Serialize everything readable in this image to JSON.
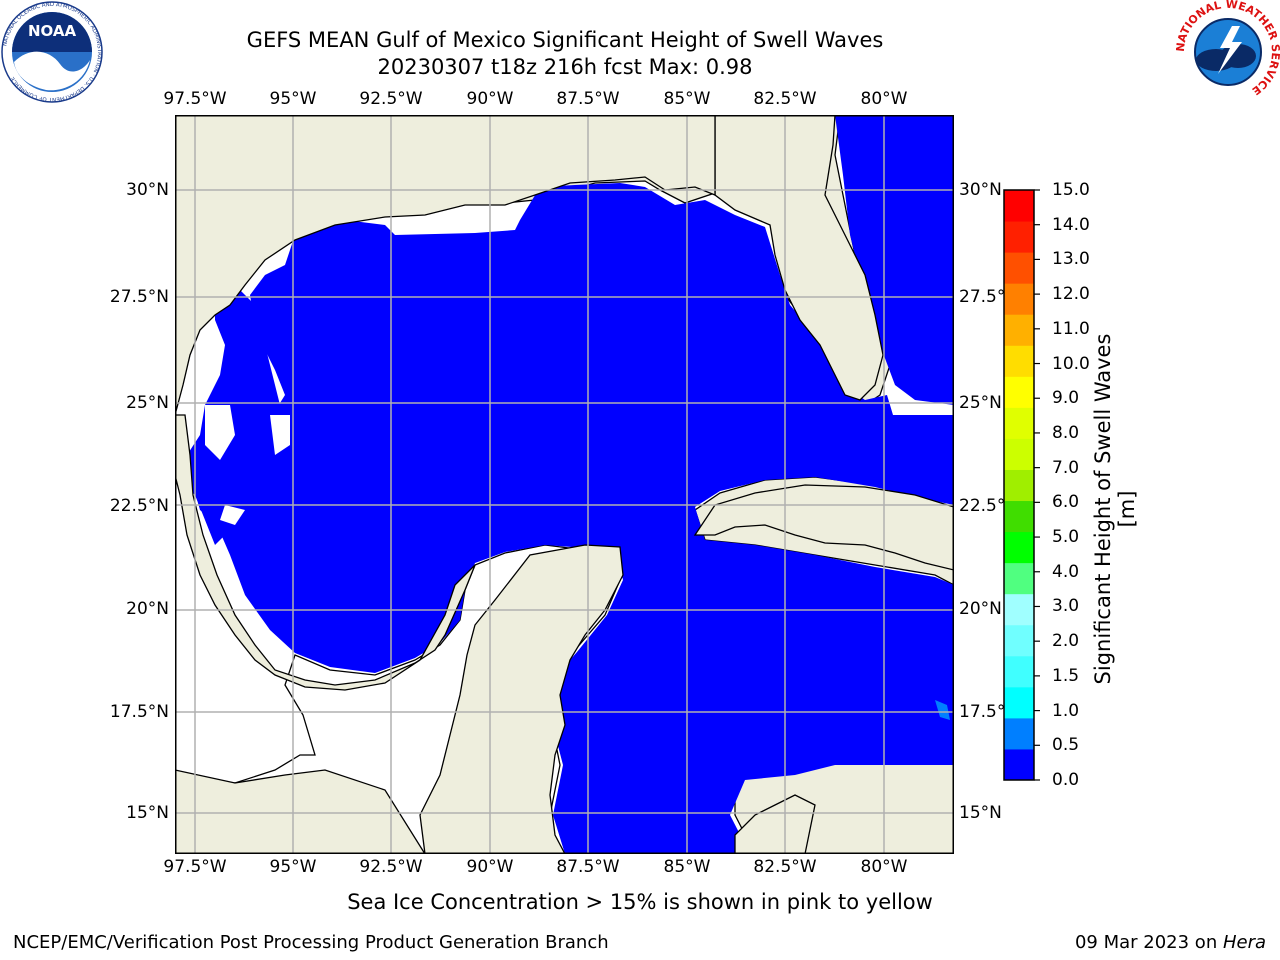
{
  "header": {
    "title": "GEFS MEAN Gulf of Mexico Significant Height of Swell Waves",
    "subtitle": "20230307 t18z 216h fcst   Max: 0.98"
  },
  "map": {
    "lon_labels": [
      "97.5°W",
      "95°W",
      "92.5°W",
      "90°W",
      "87.5°W",
      "85°W",
      "82.5°W",
      "80°W"
    ],
    "lon_values": [
      -97.5,
      -95,
      -92.5,
      -90,
      -87.5,
      -85,
      -82.5,
      -80
    ],
    "lat_labels": [
      "30°N",
      "27.5°N",
      "25°N",
      "22.5°N",
      "20°N",
      "17.5°N",
      "15°N"
    ],
    "lat_values": [
      30,
      27.5,
      25,
      22.5,
      20,
      17.5,
      15
    ],
    "lon_range": [
      -98,
      -78.2
    ],
    "lat_range": [
      14,
      31.8
    ],
    "land_color": "#eeeedd",
    "grid_color": "#b0b0b0",
    "grid": true,
    "field_max": 0.98
  },
  "colorbar": {
    "label": "Significant Height of Swell Waves [m]",
    "ticks": [
      "15.0",
      "14.0",
      "13.0",
      "12.0",
      "11.0",
      "10.0",
      "9.0",
      "8.0",
      "7.0",
      "6.0",
      "5.0",
      "4.0",
      "3.0",
      "2.0",
      "1.5",
      "1.0",
      "0.5",
      "0.0"
    ],
    "colors": [
      "#0000ff",
      "#007fff",
      "#00ffff",
      "#40ffff",
      "#70ffff",
      "#a0ffff",
      "#50ff80",
      "#00ff00",
      "#40dd00",
      "#a0ee00",
      "#ccff00",
      "#e0ff00",
      "#ffff00",
      "#ffdd00",
      "#ffb000",
      "#ff8000",
      "#ff5000",
      "#ff2000",
      "#ff0000"
    ]
  },
  "note": "Sea Ice Concentration > 15% is shown in pink to yellow",
  "footer": {
    "left": "NCEP/EMC/Verification Post Processing Product Generation Branch",
    "date": "09 Mar 2023 on ",
    "machine": "Hera"
  },
  "logos": {
    "noaa_text": "NOAA",
    "noaa_ring": "NATIONAL OCEANIC AND ATMOSPHERIC ADMINISTRATION · U.S. DEPARTMENT OF COMMERCE",
    "nws_ring": "NATIONAL WEATHER SERVICE"
  }
}
